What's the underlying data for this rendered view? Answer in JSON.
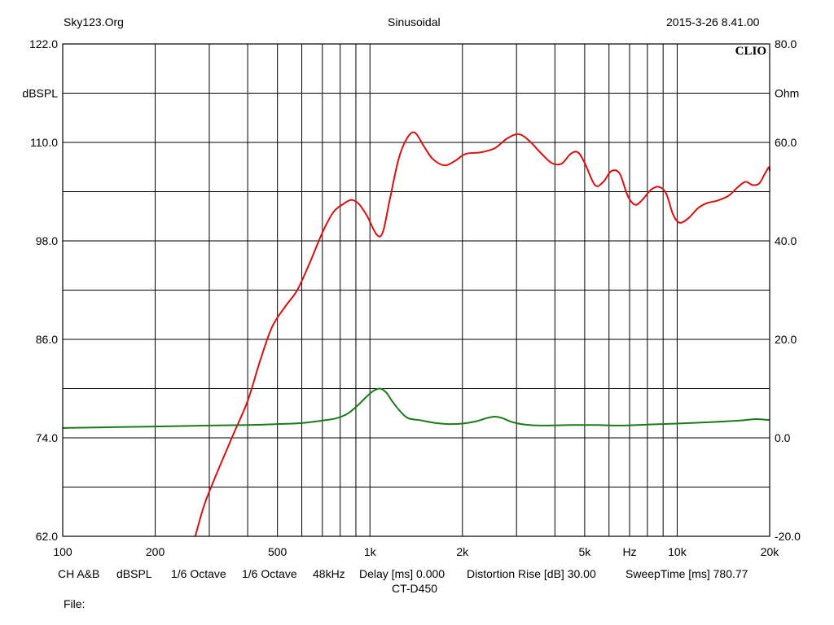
{
  "header": {
    "left": "Sky123.Org",
    "center": "Sinusoidal",
    "right": "2015-3-26 8.41.00",
    "brand": "CLIO"
  },
  "footer": {
    "ch": "CH A&B",
    "unit": "dBSPL",
    "smoothing1": "1/6 Octave",
    "smoothing2": "1/6 Octave",
    "rate": "48kHz",
    "delay": "Delay [ms] 0.000",
    "distortion": "Distortion Rise [dB] 30.00",
    "sweep": "SweepTime [ms] 780.77",
    "model": "CT-D450",
    "file": "File:"
  },
  "chart_data": {
    "type": "line",
    "title": "Sinusoidal",
    "x_scale": "log",
    "xlim": [
      100,
      20000
    ],
    "x_tick_labels": [
      {
        "value": 100,
        "label": "100"
      },
      {
        "value": 200,
        "label": "200"
      },
      {
        "value": 500,
        "label": "500"
      },
      {
        "value": 1000,
        "label": "1k"
      },
      {
        "value": 2000,
        "label": "2k"
      },
      {
        "value": 5000,
        "label": "5k"
      },
      {
        "value": 7000,
        "label": "Hz"
      },
      {
        "value": 10000,
        "label": "10k"
      },
      {
        "value": 20000,
        "label": "20k"
      }
    ],
    "ylabel_left": "dBSPL",
    "ylim_left": [
      62,
      122
    ],
    "y_left_ticks": [
      "122.0",
      "110.0",
      "98.0",
      "86.0",
      "74.0",
      "62.0"
    ],
    "ylabel_right": "Ohm",
    "ylim_right": [
      -20,
      80
    ],
    "y_right_ticks": [
      "80.0",
      "60.0",
      "40.0",
      "20.0",
      "0.0",
      "-20.0"
    ],
    "grid": true,
    "series": [
      {
        "axis": "left",
        "color": "#d81010",
        "points": [
          [
            270,
            62.0
          ],
          [
            290,
            66.0
          ],
          [
            320,
            70.0
          ],
          [
            360,
            74.5
          ],
          [
            400,
            78.5
          ],
          [
            440,
            83.5
          ],
          [
            480,
            87.5
          ],
          [
            530,
            90.0
          ],
          [
            580,
            92.0
          ],
          [
            640,
            95.5
          ],
          [
            700,
            99.0
          ],
          [
            760,
            101.5
          ],
          [
            820,
            102.5
          ],
          [
            870,
            103.0
          ],
          [
            920,
            102.5
          ],
          [
            980,
            101.0
          ],
          [
            1050,
            98.8
          ],
          [
            1100,
            99.0
          ],
          [
            1160,
            103.0
          ],
          [
            1240,
            108.0
          ],
          [
            1320,
            110.5
          ],
          [
            1400,
            111.2
          ],
          [
            1500,
            109.5
          ],
          [
            1600,
            108.0
          ],
          [
            1750,
            107.2
          ],
          [
            1900,
            107.8
          ],
          [
            2050,
            108.6
          ],
          [
            2300,
            108.8
          ],
          [
            2550,
            109.3
          ],
          [
            2800,
            110.5
          ],
          [
            3050,
            111.0
          ],
          [
            3300,
            110.2
          ],
          [
            3600,
            108.7
          ],
          [
            3900,
            107.5
          ],
          [
            4200,
            107.4
          ],
          [
            4500,
            108.6
          ],
          [
            4750,
            108.8
          ],
          [
            5000,
            107.5
          ],
          [
            5400,
            104.8
          ],
          [
            5750,
            105.2
          ],
          [
            6100,
            106.5
          ],
          [
            6500,
            106.2
          ],
          [
            6900,
            103.5
          ],
          [
            7300,
            102.4
          ],
          [
            7700,
            103.0
          ],
          [
            8200,
            104.2
          ],
          [
            8700,
            104.6
          ],
          [
            9200,
            103.8
          ],
          [
            9700,
            101.2
          ],
          [
            10200,
            100.2
          ],
          [
            10900,
            100.8
          ],
          [
            11700,
            102.0
          ],
          [
            12500,
            102.6
          ],
          [
            13500,
            102.9
          ],
          [
            14700,
            103.5
          ],
          [
            15800,
            104.6
          ],
          [
            16700,
            105.2
          ],
          [
            17600,
            104.8
          ],
          [
            18500,
            105.0
          ],
          [
            19300,
            106.2
          ],
          [
            19900,
            107.0
          ],
          [
            20000,
            106.5
          ]
        ]
      },
      {
        "axis": "right",
        "color": "#1a7a1a",
        "points": [
          [
            100,
            2.0
          ],
          [
            200,
            2.3
          ],
          [
            300,
            2.5
          ],
          [
            400,
            2.6
          ],
          [
            500,
            2.8
          ],
          [
            600,
            3.0
          ],
          [
            700,
            3.5
          ],
          [
            780,
            4.0
          ],
          [
            850,
            5.0
          ],
          [
            920,
            6.8
          ],
          [
            980,
            8.5
          ],
          [
            1030,
            9.6
          ],
          [
            1080,
            10.0
          ],
          [
            1130,
            9.2
          ],
          [
            1180,
            7.5
          ],
          [
            1250,
            5.5
          ],
          [
            1330,
            4.0
          ],
          [
            1450,
            3.6
          ],
          [
            1600,
            3.1
          ],
          [
            1800,
            2.8
          ],
          [
            2000,
            2.9
          ],
          [
            2200,
            3.3
          ],
          [
            2400,
            4.0
          ],
          [
            2550,
            4.3
          ],
          [
            2700,
            4.0
          ],
          [
            2900,
            3.2
          ],
          [
            3200,
            2.7
          ],
          [
            3600,
            2.5
          ],
          [
            4500,
            2.6
          ],
          [
            5500,
            2.6
          ],
          [
            6500,
            2.5
          ],
          [
            8000,
            2.7
          ],
          [
            10000,
            2.9
          ],
          [
            13000,
            3.2
          ],
          [
            16000,
            3.5
          ],
          [
            18000,
            3.8
          ],
          [
            20000,
            3.6
          ]
        ]
      }
    ]
  }
}
